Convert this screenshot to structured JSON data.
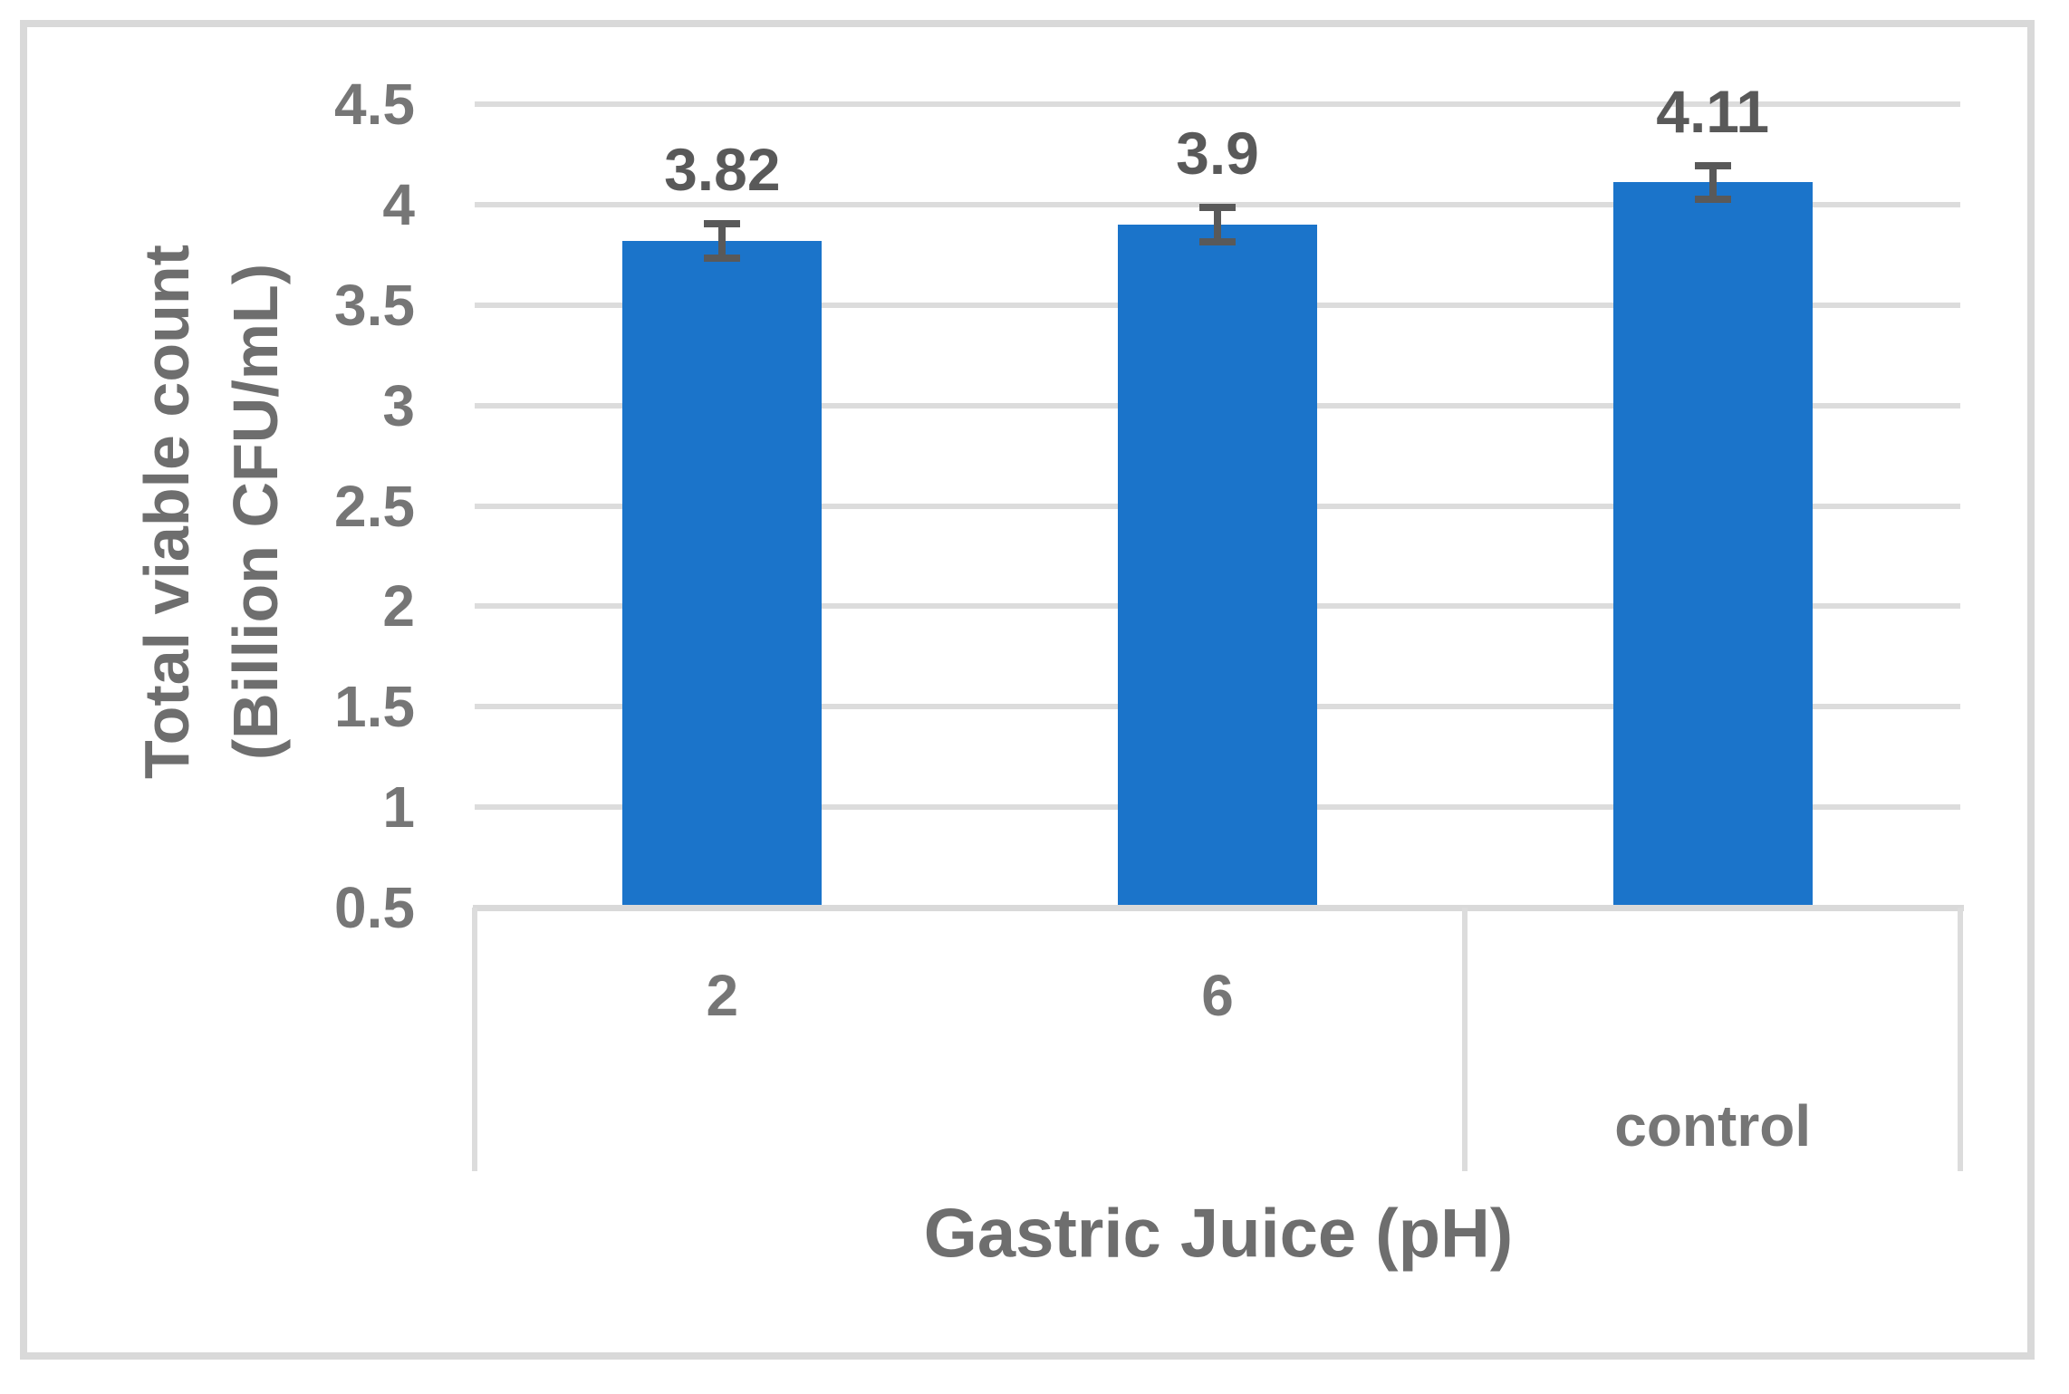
{
  "figure": {
    "background": "#ffffff",
    "border_color": "#d9d9d9"
  },
  "chart_data": {
    "type": "bar",
    "title": "",
    "categories": [
      "2",
      "6",
      "control"
    ],
    "values": [
      3.82,
      3.9,
      4.11
    ],
    "data_labels": [
      "3.82",
      "3.9",
      "4.11"
    ],
    "error_bars": [
      0.085,
      0.085,
      0.085
    ],
    "xlabel": "Gastric Juice (pH)",
    "ylabel_line1": "Total viable count",
    "ylabel_line2": "(Billion CFU/mL)",
    "ylim": [
      0.5,
      4.5
    ],
    "ytick_step": 0.5,
    "ytick_labels": [
      "0.5",
      "1",
      "1.5",
      "2",
      "2.5",
      "3",
      "3.5",
      "4",
      "4.5"
    ],
    "grid": true,
    "legend": "none",
    "category_rows": [
      1,
      1,
      2
    ],
    "divider_boundaries": [
      0,
      2,
      3
    ],
    "bar_color": "#1b74ca",
    "gridline_color": "#dcdcdc",
    "error_bar_color": "#595959",
    "tick_label_color": "#767676",
    "data_label_color": "#595959",
    "axis_title_color": "#6e6e6e"
  }
}
